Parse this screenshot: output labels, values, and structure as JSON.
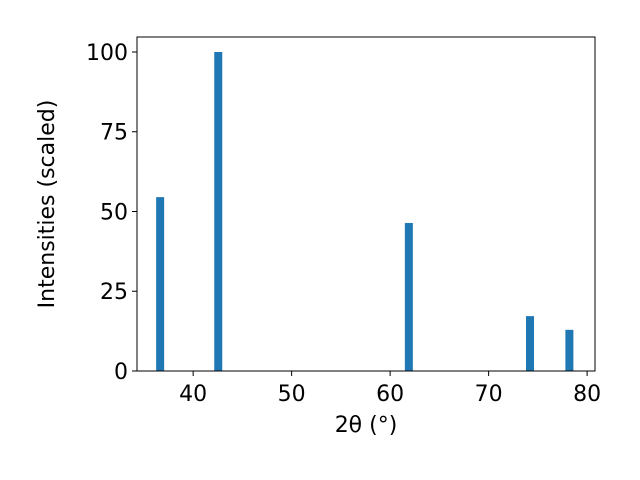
{
  "chart_data": {
    "type": "bar",
    "x": [
      36.65,
      42.55,
      61.9,
      74.2,
      78.2
    ],
    "values": [
      54.5,
      100,
      46.4,
      17.2,
      12.9
    ],
    "color": "#1f77b4",
    "xlabel": "2θ (°)",
    "ylabel": "Intensities (scaled)",
    "xlim": [
      34.3,
      80.8
    ],
    "xticks": [
      40,
      50,
      60,
      70,
      80
    ],
    "ylim": [
      0,
      104.7
    ],
    "yticks": [
      0,
      25,
      50,
      75,
      100
    ],
    "grid": false
  }
}
